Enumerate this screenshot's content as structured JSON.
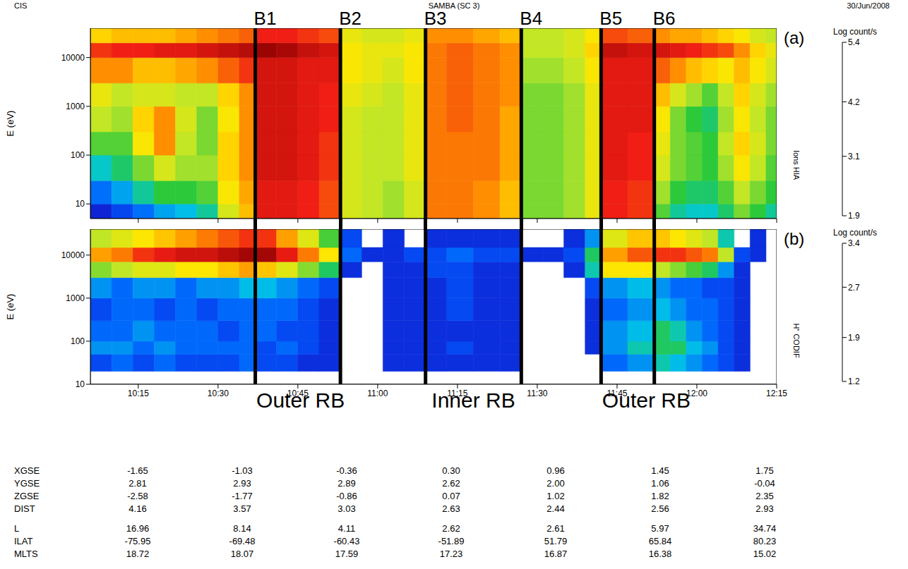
{
  "header": {
    "left": "CIS",
    "center": "SAMBA (SC 3)",
    "right": "30/Jun/2008"
  },
  "chart_data": [
    {
      "type": "heatmap",
      "letter": "(a)",
      "side_label": "Ions HIA",
      "y_label": "E (eV)",
      "log": "y",
      "tick_labels": "y",
      "xlim": [
        606,
        735
      ],
      "xticks": [
        {
          "value": 615,
          "label": "10:15"
        },
        {
          "value": 630,
          "label": "10:30"
        },
        {
          "value": 645,
          "label": "10:45"
        },
        {
          "value": 660,
          "label": "11:00"
        },
        {
          "value": 675,
          "label": "11:15"
        },
        {
          "value": 690,
          "label": "11:30"
        },
        {
          "value": 705,
          "label": "11:45"
        },
        {
          "value": 720,
          "label": "12:00"
        },
        {
          "value": 735,
          "label": "12:15"
        }
      ],
      "ylim": [
        5,
        40000
      ],
      "yticks": [
        10,
        100,
        1000,
        10000
      ],
      "x_edges": [
        606,
        610,
        614,
        618,
        622,
        626,
        630,
        634,
        637,
        641,
        645,
        649,
        653,
        657,
        661,
        665,
        669,
        673,
        678,
        683,
        687,
        691,
        695,
        699,
        702,
        707,
        712,
        715,
        718,
        721,
        724,
        727,
        730,
        733,
        735
      ],
      "y_edges": [
        5,
        10,
        30,
        100,
        300,
        1000,
        3000,
        10000,
        20000,
        40000
      ],
      "cells": [
        [
          2.0,
          2.2,
          2.4,
          2.6,
          2.7,
          2.9,
          3.6,
          4.0,
          4.8,
          4.8,
          4.7,
          4.5,
          3.6,
          3.5,
          3.4,
          3.6,
          4.3,
          4.3,
          4.2,
          4.0,
          3.3,
          3.3,
          3.4,
          3.7,
          4.7,
          4.6,
          3.2,
          2.9,
          2.8,
          2.8,
          3.0,
          3.3,
          3.1,
          2.9
        ],
        [
          2.4,
          2.6,
          2.9,
          3.1,
          3.1,
          3.2,
          3.8,
          4.1,
          4.8,
          4.8,
          4.7,
          4.5,
          3.6,
          3.5,
          3.4,
          3.6,
          4.3,
          4.3,
          4.2,
          4.0,
          3.3,
          3.3,
          3.4,
          3.7,
          4.7,
          4.6,
          3.4,
          3.1,
          3.0,
          3.0,
          3.2,
          3.5,
          3.3,
          3.1
        ],
        [
          2.8,
          3.0,
          3.3,
          3.6,
          3.4,
          3.4,
          3.9,
          4.2,
          4.9,
          4.9,
          4.8,
          4.6,
          3.6,
          3.5,
          3.5,
          3.7,
          4.3,
          4.3,
          4.3,
          4.1,
          3.3,
          3.3,
          3.4,
          3.7,
          4.8,
          4.7,
          3.6,
          3.3,
          3.2,
          3.1,
          3.4,
          3.8,
          3.5,
          3.2
        ],
        [
          3.2,
          3.2,
          3.8,
          4.2,
          3.5,
          3.3,
          3.9,
          4.2,
          4.9,
          4.9,
          4.8,
          4.6,
          3.6,
          3.5,
          3.5,
          3.7,
          4.3,
          4.3,
          4.3,
          4.1,
          3.3,
          3.3,
          3.4,
          3.7,
          4.8,
          4.7,
          3.7,
          3.3,
          3.2,
          3.1,
          3.5,
          3.9,
          3.6,
          3.3
        ],
        [
          3.5,
          3.4,
          3.9,
          4.2,
          3.6,
          3.3,
          3.8,
          4.2,
          4.9,
          4.9,
          4.8,
          4.7,
          3.6,
          3.5,
          3.5,
          3.7,
          4.3,
          4.4,
          4.3,
          4.1,
          3.3,
          3.3,
          3.4,
          3.7,
          4.8,
          4.8,
          3.8,
          3.3,
          3.1,
          3.0,
          3.4,
          3.8,
          3.5,
          3.3
        ],
        [
          3.7,
          3.5,
          3.6,
          3.6,
          3.5,
          3.5,
          3.9,
          4.2,
          4.9,
          4.9,
          4.8,
          4.7,
          3.7,
          3.6,
          3.5,
          3.7,
          4.3,
          4.4,
          4.3,
          4.2,
          3.3,
          3.3,
          3.4,
          3.7,
          4.8,
          4.8,
          4.0,
          3.6,
          3.4,
          3.2,
          3.5,
          3.9,
          3.6,
          3.4
        ],
        [
          4.2,
          4.2,
          4.0,
          4.0,
          4.1,
          4.2,
          4.4,
          4.6,
          4.9,
          4.9,
          4.8,
          4.8,
          3.8,
          3.7,
          3.6,
          3.8,
          4.3,
          4.4,
          4.3,
          4.2,
          3.4,
          3.4,
          3.5,
          3.8,
          4.8,
          4.8,
          4.4,
          4.2,
          4.0,
          3.9,
          3.8,
          4.0,
          3.8,
          3.6
        ],
        [
          4.6,
          4.7,
          4.7,
          4.8,
          4.8,
          4.9,
          5.0,
          5.1,
          5.3,
          5.2,
          5.0,
          4.9,
          3.8,
          3.7,
          3.7,
          3.8,
          4.3,
          4.4,
          4.3,
          4.2,
          3.5,
          3.5,
          3.6,
          3.9,
          5.0,
          4.9,
          4.9,
          4.8,
          4.7,
          4.6,
          4.5,
          4.2,
          3.9,
          3.7
        ],
        [
          3.9,
          4.0,
          4.0,
          4.0,
          4.1,
          4.2,
          4.3,
          4.4,
          4.7,
          4.7,
          4.6,
          4.5,
          3.7,
          3.6,
          3.6,
          3.7,
          4.2,
          4.2,
          4.1,
          4.0,
          3.5,
          3.5,
          3.6,
          3.8,
          4.5,
          4.4,
          4.2,
          4.1,
          4.1,
          4.0,
          3.9,
          3.8,
          3.6,
          3.5
        ]
      ],
      "colorbar": {
        "label": "Log count/s",
        "range": [
          1.9,
          5.4
        ],
        "ticks": [
          1.9,
          3.1,
          4.2,
          5.4
        ]
      }
    },
    {
      "type": "heatmap",
      "letter": "(b)",
      "side_label": "H⁺ CODIF",
      "y_label": "E (eV)",
      "log": "y",
      "xlim": [
        606,
        735
      ],
      "xticks": [
        {
          "value": 615,
          "label": "10:15"
        },
        {
          "value": 630,
          "label": "10:30"
        },
        {
          "value": 645,
          "label": "10:45"
        },
        {
          "value": 660,
          "label": "11:00"
        },
        {
          "value": 675,
          "label": "11:15"
        },
        {
          "value": 690,
          "label": "11:30"
        },
        {
          "value": 705,
          "label": "11:45"
        },
        {
          "value": 720,
          "label": "12:00"
        },
        {
          "value": 735,
          "label": "12:15"
        }
      ],
      "ylim": [
        10,
        40000
      ],
      "yticks": [
        10,
        100,
        1000,
        10000
      ],
      "x_edges": [
        606,
        610,
        614,
        618,
        622,
        626,
        630,
        634,
        637,
        641,
        645,
        649,
        653,
        657,
        661,
        665,
        669,
        673,
        678,
        683,
        687,
        691,
        695,
        699,
        702,
        707,
        712,
        715,
        718,
        721,
        724,
        727,
        730,
        733,
        735
      ],
      "y_edges": [
        20,
        50,
        100,
        300,
        1000,
        3000,
        7000,
        15000,
        40000
      ],
      "cells": [
        [
          1.4,
          1.5,
          1.4,
          1.5,
          1.4,
          1.4,
          1.4,
          1.5,
          1.4,
          1.4,
          1.3,
          1.3,
          null,
          null,
          1.3,
          1.3,
          1.3,
          1.3,
          1.3,
          1.3,
          null,
          null,
          null,
          null,
          1.5,
          1.6,
          1.8,
          1.7,
          1.6,
          1.5,
          1.4,
          1.3,
          null,
          null
        ],
        [
          1.6,
          1.6,
          1.5,
          1.6,
          1.5,
          1.5,
          1.5,
          1.5,
          1.4,
          1.5,
          1.4,
          1.3,
          null,
          null,
          1.3,
          1.3,
          1.3,
          1.4,
          1.3,
          1.3,
          null,
          null,
          null,
          1.3,
          1.6,
          1.8,
          1.9,
          1.9,
          1.7,
          1.6,
          1.4,
          1.3,
          null,
          null
        ],
        [
          1.5,
          1.5,
          1.6,
          1.5,
          1.5,
          1.5,
          1.4,
          1.5,
          1.5,
          1.4,
          1.4,
          1.3,
          null,
          null,
          1.3,
          1.3,
          1.3,
          1.3,
          1.3,
          1.3,
          null,
          null,
          null,
          1.3,
          1.6,
          1.7,
          1.9,
          1.8,
          1.6,
          1.5,
          1.4,
          1.3,
          null,
          null
        ],
        [
          1.4,
          1.5,
          1.5,
          1.4,
          1.5,
          1.4,
          1.5,
          1.5,
          1.5,
          1.5,
          1.4,
          1.3,
          null,
          null,
          1.3,
          1.3,
          1.3,
          1.4,
          1.3,
          1.3,
          null,
          null,
          null,
          1.3,
          1.5,
          1.6,
          1.7,
          1.6,
          1.5,
          1.5,
          1.4,
          1.3,
          null,
          null
        ],
        [
          1.6,
          1.5,
          1.6,
          1.6,
          1.5,
          1.6,
          1.6,
          1.7,
          1.7,
          1.6,
          1.5,
          1.4,
          null,
          null,
          1.3,
          1.3,
          1.3,
          1.4,
          1.3,
          1.3,
          null,
          null,
          null,
          1.4,
          1.6,
          1.7,
          1.6,
          1.5,
          1.5,
          1.4,
          1.4,
          1.3,
          null,
          null
        ],
        [
          2.1,
          2.2,
          2.3,
          2.3,
          2.4,
          2.4,
          2.5,
          2.6,
          2.5,
          2.3,
          2.1,
          1.9,
          1.3,
          null,
          1.3,
          1.3,
          1.4,
          1.4,
          1.3,
          1.3,
          null,
          null,
          1.3,
          1.8,
          2.4,
          2.4,
          2.2,
          2.1,
          2.0,
          1.9,
          1.6,
          1.3,
          null,
          null
        ],
        [
          2.6,
          2.7,
          2.9,
          3.0,
          3.1,
          3.1,
          3.2,
          3.3,
          3.3,
          3.0,
          2.7,
          2.4,
          1.5,
          1.3,
          1.3,
          1.4,
          1.4,
          1.5,
          1.4,
          1.4,
          1.3,
          1.3,
          1.4,
          1.9,
          2.6,
          2.8,
          2.9,
          2.9,
          2.8,
          2.7,
          2.2,
          1.4,
          1.3,
          null
        ],
        [
          2.2,
          2.3,
          2.4,
          2.5,
          2.6,
          2.7,
          2.8,
          2.9,
          2.9,
          2.6,
          2.3,
          2.0,
          1.4,
          null,
          1.3,
          null,
          1.3,
          1.3,
          1.3,
          1.3,
          null,
          null,
          1.3,
          1.6,
          2.3,
          2.5,
          2.5,
          2.4,
          2.3,
          2.2,
          1.8,
          null,
          1.3,
          null
        ]
      ],
      "colorbar": {
        "label": "Log count/s",
        "range": [
          1.2,
          3.4
        ],
        "ticks": [
          1.2,
          1.9,
          2.7,
          3.4
        ]
      }
    }
  ],
  "boundaries": [
    {
      "label": "B1",
      "x": 637
    },
    {
      "label": "B2",
      "x": 653
    },
    {
      "label": "B3",
      "x": 669
    },
    {
      "label": "B4",
      "x": 687
    },
    {
      "label": "B5",
      "x": 702
    },
    {
      "label": "B6",
      "x": 712
    }
  ],
  "annotations": [
    {
      "text": "Outer RB",
      "x": 645.5
    },
    {
      "text": "Inner RB",
      "x": 678
    },
    {
      "text": "Outer RB",
      "x": 710.5
    }
  ],
  "ephemeris": {
    "groups": [
      [
        {
          "label": "XGSE",
          "values": [
            "-1.65",
            "-1.03",
            "-0.36",
            "0.30",
            "0.96",
            "1.45",
            "1.75"
          ]
        },
        {
          "label": "YGSE",
          "values": [
            "2.81",
            "2.93",
            "2.89",
            "2.62",
            "2.00",
            "1.06",
            "-0.04"
          ]
        },
        {
          "label": "ZGSE",
          "values": [
            "-2.58",
            "-1.77",
            "-0.86",
            "0.07",
            "1.02",
            "1.82",
            "2.35"
          ]
        },
        {
          "label": "DIST",
          "values": [
            "4.16",
            "3.57",
            "3.03",
            "2.63",
            "2.44",
            "2.56",
            "2.93"
          ]
        }
      ],
      [
        {
          "label": "L",
          "values": [
            "16.96",
            "8.14",
            "4.11",
            "2.62",
            "2.61",
            "5.97",
            "34.74"
          ]
        },
        {
          "label": "ILAT",
          "values": [
            "-75.95",
            "-69.48",
            "-60.43",
            "-51.89",
            "51.79",
            "65.84",
            "80.23"
          ]
        },
        {
          "label": "MLTS",
          "values": [
            "18.72",
            "18.07",
            "17.59",
            "17.23",
            "16.87",
            "16.38",
            "15.02"
          ]
        }
      ]
    ]
  }
}
